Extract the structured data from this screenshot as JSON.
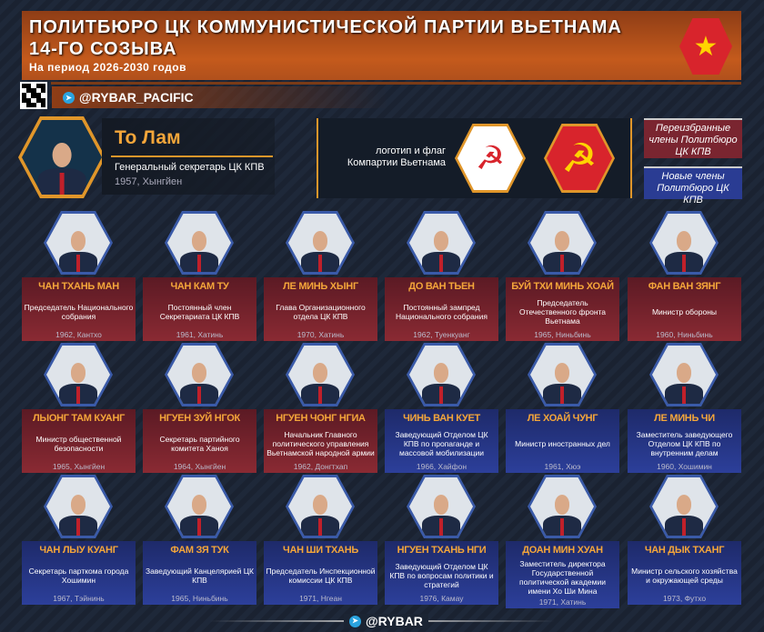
{
  "header": {
    "title_line1": "ПОЛИТБЮРО ЦК КОММУНИСТИЧЕСКОЙ ПАРТИИ ВЬЕТНАМА",
    "title_line2": "14-ГО СОЗЫВА",
    "subtitle": "На период 2026-2030 годов",
    "flag_icon": "vietnam-flag-star"
  },
  "channel": {
    "handle": "@RYBAR_PACIFIC",
    "footer_handle": "@RYBAR"
  },
  "leader": {
    "name": "То Лам",
    "role": "Генеральный секретарь ЦК КПВ",
    "born": "1957, Хынгйен"
  },
  "logos": {
    "caption_line1": "логотип и флаг",
    "caption_line2": "Компартии Вьетнама"
  },
  "legend": {
    "reelected": "Переизбранные члены Политбюро ЦК КПВ",
    "new": "Новые члены Политбюро ЦК КПВ",
    "colors": {
      "reelected": "#7a2530",
      "new": "#2a3c93"
    }
  },
  "members": [
    {
      "name": "ЧАН ТХАНЬ МАН",
      "role": "Председатель Национального собрания",
      "born": "1962, Кантхо",
      "status": "reelected"
    },
    {
      "name": "ЧАН КАМ ТУ",
      "role": "Постоянный член Секретариата ЦК КПВ",
      "born": "1961, Хатинь",
      "status": "reelected"
    },
    {
      "name": "ЛЕ МИНЬ ХЫНГ",
      "role": "Глава Организационного отдела ЦК КПВ",
      "born": "1970, Хатинь",
      "status": "reelected"
    },
    {
      "name": "ДО ВАН ТЬЕН",
      "role": "Постоянный зампред Национального собрания",
      "born": "1962, Туенкуанг",
      "status": "reelected"
    },
    {
      "name": "БУЙ ТХИ МИНЬ ХОАЙ",
      "role": "Председатель Отечественного фронта Вьетнама",
      "born": "1965, Ниньбинь",
      "status": "reelected"
    },
    {
      "name": "ФАН ВАН ЗЯНГ",
      "role": "Министр обороны",
      "born": "1960, Ниньбинь",
      "status": "reelected"
    },
    {
      "name": "ЛЫОНГ ТАМ КУАНГ",
      "role": "Министр общественной безопасности",
      "born": "1965, Хынгйен",
      "status": "reelected"
    },
    {
      "name": "НГУЕН ЗУЙ НГОК",
      "role": "Секретарь партийного комитета Ханоя",
      "born": "1964, Хынгйен",
      "status": "reelected"
    },
    {
      "name": "НГУЕН ЧОНГ НГИА",
      "role": "Начальник Главного политического управления Вьетнамской народной армии",
      "born": "1962, Донгтхап",
      "status": "reelected"
    },
    {
      "name": "ЧИНЬ ВАН КУЕТ",
      "role": "Заведующий Отделом ЦК КПВ по пропаганде и массовой мобилизации",
      "born": "1966, Хайфон",
      "status": "new"
    },
    {
      "name": "ЛЕ ХОАЙ ЧУНГ",
      "role": "Министр иностранных дел",
      "born": "1961, Хюэ",
      "status": "new"
    },
    {
      "name": "ЛЕ МИНЬ ЧИ",
      "role": "Заместитель заведующего Отделом ЦК КПВ по внутренним делам",
      "born": "1960, Хошимин",
      "status": "new"
    },
    {
      "name": "ЧАН ЛЫУ КУАНГ",
      "role": "Секретарь парткома города Хошимин",
      "born": "1967, Тэйнинь",
      "status": "new"
    },
    {
      "name": "ФАМ ЗЯ ТУК",
      "role": "Заведующий Канцелярией ЦК КПВ",
      "born": "1965, Ниньбинь",
      "status": "new"
    },
    {
      "name": "ЧАН ШИ ТХАНЬ",
      "role": "Председатель Инспекционной комиссии ЦК КПВ",
      "born": "1971, Нгеан",
      "status": "new"
    },
    {
      "name": "НГУЕН ТХАНЬ НГИ",
      "role": "Заведующий Отделом ЦК КПВ по вопросам политики и стратегий",
      "born": "1976, Камау",
      "status": "new"
    },
    {
      "name": "ДОАН МИН ХУАН",
      "role": "Заместитель директора Государственной политической академии имени Хо Ши Мина",
      "born": "1971, Хатинь",
      "status": "new"
    },
    {
      "name": "ЧАН ДЫК ТХАНГ",
      "role": "Министр сельского хозяйства и окружающей среды",
      "born": "1973, Футхо",
      "status": "new"
    }
  ]
}
